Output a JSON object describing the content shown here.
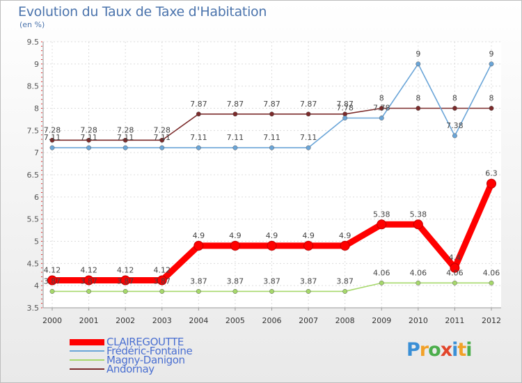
{
  "title": "Evolution du Taux de Taxe d'Habitation",
  "unit_label": "(en %)",
  "brand": {
    "text": "Proxiti",
    "colors": [
      "#3a8fd6",
      "#f2a128",
      "#4cae4c",
      "#e2452b",
      "#3a8fd6",
      "#f2a128",
      "#4cae4c"
    ]
  },
  "chart_data": {
    "type": "line",
    "x": [
      "2000",
      "2001",
      "2002",
      "2003",
      "2004",
      "2005",
      "2006",
      "2007",
      "2008",
      "2009",
      "2010",
      "2011",
      "2012"
    ],
    "y_ticks": [
      "3.5",
      "4",
      "4.5",
      "5",
      "5.5",
      "6",
      "6.5",
      "7",
      "7.5",
      "8",
      "8.5",
      "9",
      "9.5"
    ],
    "ylim": [
      3.5,
      9.5
    ],
    "grid": true,
    "legend_position": "bottom-left",
    "series": [
      {
        "name": "CLAIREGOUTTE",
        "color": "#ff0000",
        "emphasis": true,
        "values": [
          4.12,
          4.12,
          4.12,
          4.12,
          4.9,
          4.9,
          4.9,
          4.9,
          4.9,
          5.38,
          5.38,
          4.4,
          6.3
        ],
        "labels": [
          "4.12",
          "4.12",
          "4.12",
          "4.12",
          "4.9",
          "4.9",
          "4.9",
          "4.9",
          "4.9",
          "5.38",
          "5.38",
          "4.4",
          "6.3"
        ]
      },
      {
        "name": "Frédéric-Fontaine",
        "color": "#6aa5d8",
        "values": [
          7.11,
          7.11,
          7.11,
          7.11,
          7.11,
          7.11,
          7.11,
          7.11,
          7.78,
          7.78,
          9,
          7.38,
          9
        ],
        "labels": [
          "7.11",
          "7.11",
          "7.11",
          "7.11",
          "7.11",
          "7.11",
          "7.11",
          "7.11",
          "7.78",
          "7.78",
          "9",
          "7.38",
          "9"
        ]
      },
      {
        "name": "Magny-Danigon",
        "color": "#a6d86b",
        "values": [
          3.87,
          3.87,
          3.87,
          3.87,
          3.87,
          3.87,
          3.87,
          3.87,
          3.87,
          4.06,
          4.06,
          4.06,
          4.06
        ],
        "labels": [
          "3.87",
          "3.87",
          "3.87",
          "3.87",
          "3.87",
          "3.87",
          "3.87",
          "3.87",
          "3.87",
          "4.06",
          "4.06",
          "4.06",
          "4.06"
        ]
      },
      {
        "name": "Andornay",
        "color": "#7b2a2a",
        "values": [
          7.28,
          7.28,
          7.28,
          7.28,
          7.87,
          7.87,
          7.87,
          7.87,
          7.87,
          8,
          8,
          8,
          8
        ],
        "labels": [
          "7.28",
          "7.28",
          "7.28",
          "7.28",
          "7.87",
          "7.87",
          "7.87",
          "7.87",
          "7.87",
          "8",
          "8",
          "8",
          "8"
        ]
      }
    ]
  }
}
